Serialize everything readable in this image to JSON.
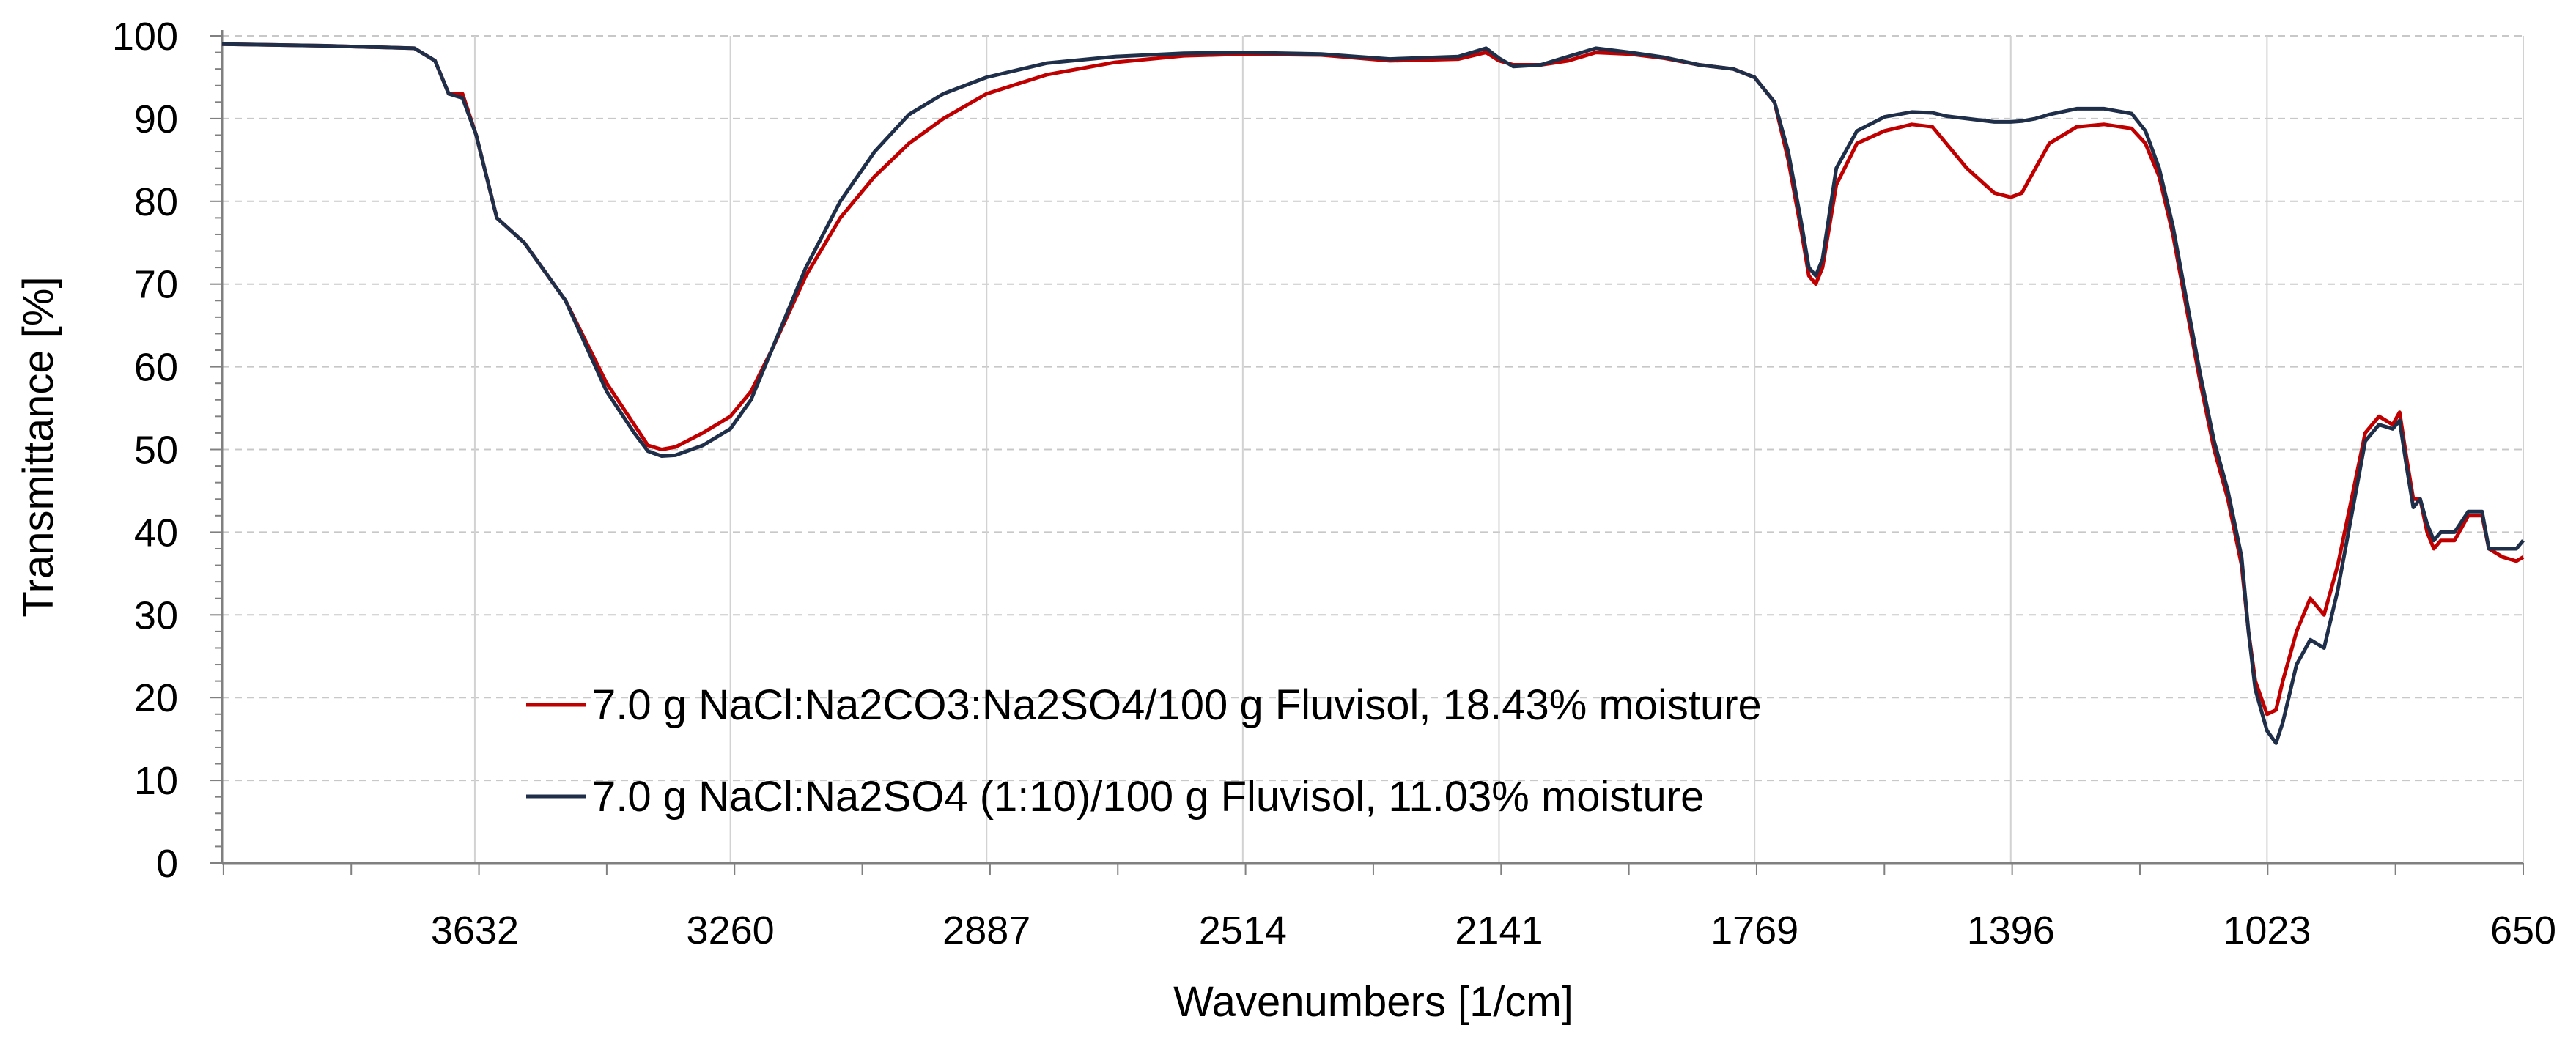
{
  "chart_data": {
    "type": "line",
    "title": "",
    "xlabel": "Wavenumbers [1/cm]",
    "ylabel": "Transmittance [%]",
    "xlim": [
      4000,
      650
    ],
    "ylim": [
      0,
      100
    ],
    "x_reversed": true,
    "xticks": [
      3632,
      3260,
      2887,
      2514,
      2141,
      1769,
      1396,
      1023,
      650
    ],
    "xtick_labels": [
      "3632",
      "3260",
      "2887",
      "2514",
      "2141",
      "1769",
      "1396",
      "1023",
      "650"
    ],
    "yticks": [
      0,
      10,
      20,
      30,
      40,
      50,
      60,
      70,
      80,
      90,
      100
    ],
    "ytick_labels": [
      "0",
      "10",
      "20",
      "30",
      "40",
      "50",
      "60",
      "70",
      "80",
      "90",
      "100"
    ],
    "grid": "dashed",
    "legend_position": "lower-left",
    "series": [
      {
        "name": "7.0 g NaCl:Na2CO3:Na2SO4/100 g Fluvisol, 18.43% moisture",
        "color": "#c00000",
        "points": [
          [
            4000,
            99.0
          ],
          [
            3850,
            98.8
          ],
          [
            3720,
            98.5
          ],
          [
            3690,
            97
          ],
          [
            3670,
            93
          ],
          [
            3650,
            93
          ],
          [
            3630,
            88
          ],
          [
            3600,
            78
          ],
          [
            3560,
            75
          ],
          [
            3500,
            68
          ],
          [
            3440,
            58
          ],
          [
            3400,
            53
          ],
          [
            3380,
            50.5
          ],
          [
            3360,
            50
          ],
          [
            3340,
            50.3
          ],
          [
            3300,
            52
          ],
          [
            3260,
            54
          ],
          [
            3230,
            57
          ],
          [
            3200,
            62
          ],
          [
            3150,
            71
          ],
          [
            3100,
            78
          ],
          [
            3050,
            83
          ],
          [
            3000,
            87
          ],
          [
            2950,
            90
          ],
          [
            2887,
            93
          ],
          [
            2800,
            95.3
          ],
          [
            2700,
            96.8
          ],
          [
            2600,
            97.6
          ],
          [
            2514,
            97.8
          ],
          [
            2400,
            97.7
          ],
          [
            2300,
            97
          ],
          [
            2200,
            97.2
          ],
          [
            2160,
            98
          ],
          [
            2141,
            97
          ],
          [
            2120,
            96.5
          ],
          [
            2080,
            96.5
          ],
          [
            2040,
            97
          ],
          [
            2000,
            98
          ],
          [
            1950,
            97.8
          ],
          [
            1900,
            97.3
          ],
          [
            1850,
            96.5
          ],
          [
            1800,
            96
          ],
          [
            1769,
            95
          ],
          [
            1740,
            92
          ],
          [
            1720,
            85
          ],
          [
            1700,
            76
          ],
          [
            1690,
            71
          ],
          [
            1680,
            70
          ],
          [
            1670,
            72
          ],
          [
            1650,
            82
          ],
          [
            1620,
            87
          ],
          [
            1580,
            88.5
          ],
          [
            1540,
            89.3
          ],
          [
            1510,
            89
          ],
          [
            1490,
            87
          ],
          [
            1460,
            84
          ],
          [
            1420,
            81
          ],
          [
            1396,
            80.5
          ],
          [
            1380,
            81
          ],
          [
            1360,
            84
          ],
          [
            1340,
            87
          ],
          [
            1300,
            89
          ],
          [
            1260,
            89.3
          ],
          [
            1220,
            88.8
          ],
          [
            1200,
            87
          ],
          [
            1180,
            83
          ],
          [
            1160,
            76
          ],
          [
            1140,
            67
          ],
          [
            1120,
            58
          ],
          [
            1100,
            50
          ],
          [
            1080,
            44
          ],
          [
            1060,
            36
          ],
          [
            1050,
            28
          ],
          [
            1040,
            22
          ],
          [
            1023,
            18
          ],
          [
            1010,
            18.5
          ],
          [
            1000,
            22
          ],
          [
            980,
            28
          ],
          [
            960,
            32
          ],
          [
            940,
            30
          ],
          [
            920,
            36
          ],
          [
            900,
            44
          ],
          [
            880,
            52
          ],
          [
            860,
            54
          ],
          [
            840,
            53
          ],
          [
            830,
            54.5
          ],
          [
            820,
            49
          ],
          [
            810,
            44
          ],
          [
            800,
            44
          ],
          [
            790,
            40
          ],
          [
            780,
            38
          ],
          [
            770,
            39
          ],
          [
            750,
            39
          ],
          [
            730,
            42
          ],
          [
            710,
            42
          ],
          [
            700,
            38
          ],
          [
            680,
            37
          ],
          [
            660,
            36.5
          ],
          [
            650,
            37
          ]
        ]
      },
      {
        "name": "7.0 g NaCl:Na2SO4 (1:10)/100 g Fluvisol, 11.03% moisture",
        "color": "#1f2f4a",
        "points": [
          [
            4000,
            99.0
          ],
          [
            3850,
            98.8
          ],
          [
            3720,
            98.5
          ],
          [
            3690,
            97
          ],
          [
            3670,
            93
          ],
          [
            3650,
            92.5
          ],
          [
            3630,
            88
          ],
          [
            3600,
            78
          ],
          [
            3560,
            75
          ],
          [
            3500,
            68
          ],
          [
            3440,
            57
          ],
          [
            3400,
            52
          ],
          [
            3380,
            49.8
          ],
          [
            3360,
            49.2
          ],
          [
            3340,
            49.3
          ],
          [
            3300,
            50.5
          ],
          [
            3260,
            52.5
          ],
          [
            3230,
            56
          ],
          [
            3200,
            62
          ],
          [
            3150,
            72
          ],
          [
            3100,
            80
          ],
          [
            3050,
            86
          ],
          [
            3000,
            90.5
          ],
          [
            2950,
            93
          ],
          [
            2887,
            95
          ],
          [
            2800,
            96.7
          ],
          [
            2700,
            97.5
          ],
          [
            2600,
            97.9
          ],
          [
            2514,
            98
          ],
          [
            2400,
            97.8
          ],
          [
            2300,
            97.2
          ],
          [
            2200,
            97.5
          ],
          [
            2160,
            98.5
          ],
          [
            2141,
            97.3
          ],
          [
            2120,
            96.3
          ],
          [
            2080,
            96.5
          ],
          [
            2040,
            97.5
          ],
          [
            2000,
            98.5
          ],
          [
            1950,
            98
          ],
          [
            1900,
            97.4
          ],
          [
            1850,
            96.5
          ],
          [
            1800,
            96
          ],
          [
            1769,
            95
          ],
          [
            1740,
            92
          ],
          [
            1720,
            86
          ],
          [
            1700,
            77
          ],
          [
            1690,
            72
          ],
          [
            1680,
            71
          ],
          [
            1670,
            73
          ],
          [
            1650,
            84
          ],
          [
            1620,
            88.5
          ],
          [
            1580,
            90.2
          ],
          [
            1540,
            90.8
          ],
          [
            1510,
            90.7
          ],
          [
            1490,
            90.3
          ],
          [
            1460,
            90
          ],
          [
            1420,
            89.6
          ],
          [
            1396,
            89.6
          ],
          [
            1380,
            89.7
          ],
          [
            1360,
            90
          ],
          [
            1340,
            90.5
          ],
          [
            1300,
            91.2
          ],
          [
            1260,
            91.2
          ],
          [
            1220,
            90.6
          ],
          [
            1200,
            88.5
          ],
          [
            1180,
            84
          ],
          [
            1160,
            77
          ],
          [
            1140,
            68
          ],
          [
            1120,
            59
          ],
          [
            1100,
            51
          ],
          [
            1080,
            45
          ],
          [
            1060,
            37
          ],
          [
            1050,
            28
          ],
          [
            1040,
            21
          ],
          [
            1023,
            16
          ],
          [
            1010,
            14.5
          ],
          [
            1000,
            17
          ],
          [
            980,
            24
          ],
          [
            960,
            27
          ],
          [
            940,
            26
          ],
          [
            920,
            33
          ],
          [
            900,
            42
          ],
          [
            880,
            51
          ],
          [
            860,
            53
          ],
          [
            840,
            52.5
          ],
          [
            830,
            53.5
          ],
          [
            820,
            48
          ],
          [
            810,
            43
          ],
          [
            800,
            44
          ],
          [
            790,
            41
          ],
          [
            780,
            39
          ],
          [
            770,
            40
          ],
          [
            750,
            40
          ],
          [
            730,
            42.5
          ],
          [
            710,
            42.5
          ],
          [
            700,
            38
          ],
          [
            680,
            38
          ],
          [
            660,
            38
          ],
          [
            650,
            39
          ]
        ]
      }
    ]
  }
}
